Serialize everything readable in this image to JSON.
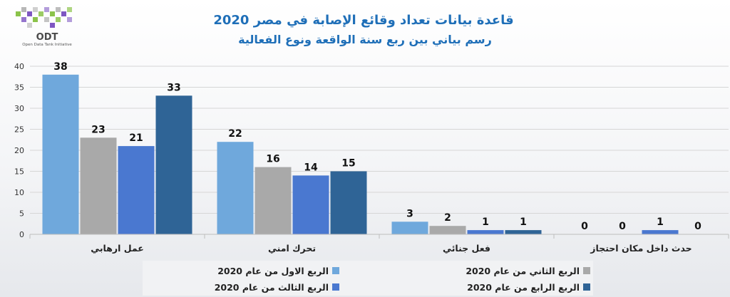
{
  "logo": {
    "name": "ODT",
    "tagline": "Open Data Tank Initiative"
  },
  "chart_data": {
    "type": "bar",
    "title": "قاعدة بيانات تعداد وقائع الإصابة في مصر 2020",
    "subtitle": "رسم بياني بين ربع سنة الواقعة ونوع الفعالية",
    "xlabel": "",
    "ylabel": "",
    "categories": [
      "عمل ارهابي",
      "تحرك امني",
      "فعل جنائي",
      "حدث داخل مكان احتجاز"
    ],
    "ylim": [
      0,
      40
    ],
    "yticks": [
      0,
      5,
      10,
      15,
      20,
      25,
      30,
      35,
      40
    ],
    "grid": true,
    "legend_position": "bottom",
    "series": [
      {
        "name": "الربع الاول من عام 2020",
        "values": [
          38,
          22,
          3,
          0
        ],
        "color": "#6fa8dc"
      },
      {
        "name": "الربع الثاني من عام 2020",
        "values": [
          23,
          16,
          2,
          0
        ],
        "color": "#a9a9a9"
      },
      {
        "name": "الربع الثالث من عام 2020",
        "values": [
          21,
          14,
          1,
          1
        ],
        "color": "#4a78d0"
      },
      {
        "name": "الربع الرابع من عام 2020",
        "values": [
          33,
          15,
          1,
          0
        ],
        "color": "#2f6496"
      }
    ]
  }
}
